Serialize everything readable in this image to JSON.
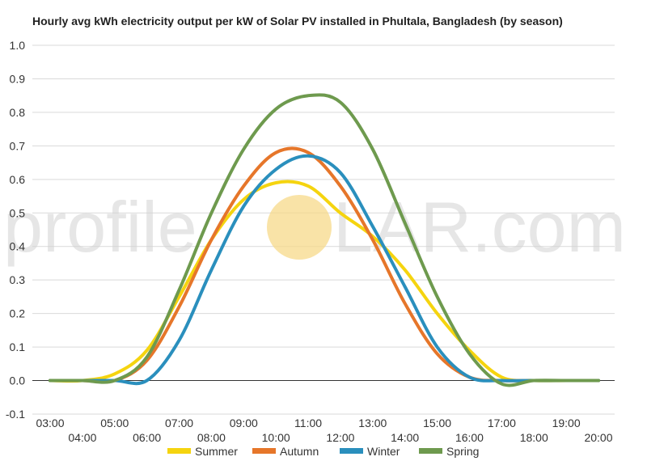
{
  "chart_data": {
    "type": "line",
    "title": "Hourly avg kWh electricity output per kW of Solar PV installed in Phultala, Bangladesh (by season)",
    "xlabel": "",
    "ylabel": "",
    "x": [
      "03:00",
      "04:00",
      "05:00",
      "06:00",
      "07:00",
      "08:00",
      "09:00",
      "10:00",
      "11:00",
      "12:00",
      "13:00",
      "14:00",
      "15:00",
      "16:00",
      "17:00",
      "18:00",
      "19:00",
      "20:00"
    ],
    "ylim": [
      -0.1,
      1.0
    ],
    "yticks": [
      "-0.1",
      "0.0",
      "0.1",
      "0.2",
      "0.3",
      "0.4",
      "0.5",
      "0.6",
      "0.7",
      "0.8",
      "0.9",
      "1.0"
    ],
    "grid": true,
    "legend_position": "bottom",
    "series": [
      {
        "name": "Summer",
        "color": "#f5d40f",
        "values": [
          0.0,
          0.0,
          0.02,
          0.09,
          0.25,
          0.42,
          0.54,
          0.59,
          0.58,
          0.5,
          0.43,
          0.33,
          0.2,
          0.09,
          0.01,
          0.0,
          0.0,
          0.0
        ]
      },
      {
        "name": "Autumn",
        "color": "#e6762a",
        "values": [
          0.0,
          0.0,
          0.0,
          0.06,
          0.22,
          0.42,
          0.58,
          0.68,
          0.68,
          0.58,
          0.42,
          0.23,
          0.08,
          0.01,
          0.0,
          0.0,
          0.0,
          0.0
        ]
      },
      {
        "name": "Winter",
        "color": "#2a8fbd",
        "values": [
          0.0,
          0.0,
          0.0,
          0.0,
          0.12,
          0.33,
          0.52,
          0.63,
          0.67,
          0.62,
          0.46,
          0.28,
          0.1,
          0.01,
          0.0,
          0.0,
          0.0,
          0.0
        ]
      },
      {
        "name": "Spring",
        "color": "#6e9a4e",
        "values": [
          0.0,
          0.0,
          0.0,
          0.07,
          0.27,
          0.5,
          0.69,
          0.81,
          0.85,
          0.83,
          0.69,
          0.47,
          0.25,
          0.08,
          -0.01,
          0.0,
          0.0,
          0.0
        ]
      }
    ]
  },
  "watermark": {
    "left": "profile",
    "right": "LAR.com",
    "sun_color": "#f7d98a"
  }
}
